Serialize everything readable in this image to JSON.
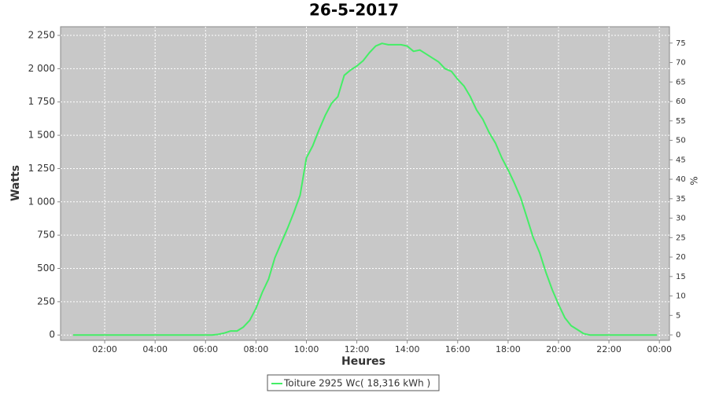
{
  "chart_data": {
    "type": "line",
    "title": "26-5-2017",
    "x_label": "Heures",
    "y_label": "Watts",
    "y2_label": "%",
    "x": [
      0.75,
      1.5,
      2.5,
      3.5,
      4.5,
      5.5,
      6.25,
      6.5,
      6.75,
      7.0,
      7.25,
      7.5,
      7.75,
      8.0,
      8.25,
      8.5,
      8.75,
      9.0,
      9.25,
      9.5,
      9.75,
      10.0,
      10.25,
      10.5,
      10.75,
      11.0,
      11.25,
      11.5,
      11.75,
      12.0,
      12.25,
      12.5,
      12.75,
      13.0,
      13.25,
      13.5,
      13.75,
      14.0,
      14.25,
      14.5,
      14.75,
      15.0,
      15.25,
      15.5,
      15.75,
      16.0,
      16.25,
      16.5,
      16.75,
      17.0,
      17.25,
      17.5,
      17.75,
      18.0,
      18.25,
      18.5,
      18.75,
      19.0,
      19.25,
      19.5,
      19.75,
      20.0,
      20.25,
      20.5,
      20.75,
      21.0,
      21.25,
      22.0,
      23.0,
      23.9
    ],
    "series": [
      {
        "name": "Toiture 2925 Wc( 18,316 kWh )",
        "color": "#44ee66",
        "values": [
          0,
          0,
          0,
          0,
          0,
          0,
          0,
          5,
          15,
          30,
          30,
          60,
          110,
          200,
          320,
          420,
          580,
          690,
          800,
          920,
          1050,
          1330,
          1420,
          1540,
          1650,
          1740,
          1790,
          1950,
          1990,
          2020,
          2060,
          2120,
          2170,
          2190,
          2180,
          2180,
          2180,
          2170,
          2130,
          2140,
          2110,
          2080,
          2050,
          2000,
          1980,
          1920,
          1870,
          1790,
          1690,
          1620,
          1520,
          1440,
          1330,
          1240,
          1140,
          1030,
          880,
          730,
          620,
          470,
          340,
          230,
          130,
          70,
          40,
          10,
          0,
          0,
          0,
          0
        ]
      }
    ],
    "xlim": [
      0.25,
      24.4
    ],
    "xticks": [
      {
        "value": 2,
        "label": "02:00"
      },
      {
        "value": 4,
        "label": "04:00"
      },
      {
        "value": 6,
        "label": "06:00"
      },
      {
        "value": 8,
        "label": "08:00"
      },
      {
        "value": 10,
        "label": "10:00"
      },
      {
        "value": 12,
        "label": "12:00"
      },
      {
        "value": 14,
        "label": "14:00"
      },
      {
        "value": 16,
        "label": "16:00"
      },
      {
        "value": 18,
        "label": "18:00"
      },
      {
        "value": 20,
        "label": "20:00"
      },
      {
        "value": 22,
        "label": "22:00"
      },
      {
        "value": 24,
        "label": "00:00"
      }
    ],
    "ylim": [
      -40,
      2315
    ],
    "yticks": [
      0,
      250,
      500,
      750,
      {
        "value": 1000,
        "label": "1 000"
      },
      {
        "value": 1250,
        "label": "1 250"
      },
      {
        "value": 1500,
        "label": "1 500"
      },
      {
        "value": 1750,
        "label": "1 750"
      },
      {
        "value": 2000,
        "label": "2 000"
      },
      {
        "value": 2250,
        "label": "2 250"
      }
    ],
    "y2lim": [
      -1.4,
      79.2
    ],
    "y2ticks": [
      0,
      5,
      10,
      15,
      20,
      25,
      30,
      35,
      40,
      45,
      50,
      55,
      60,
      65,
      70,
      75
    ],
    "grid": true,
    "legend": "bottom"
  }
}
